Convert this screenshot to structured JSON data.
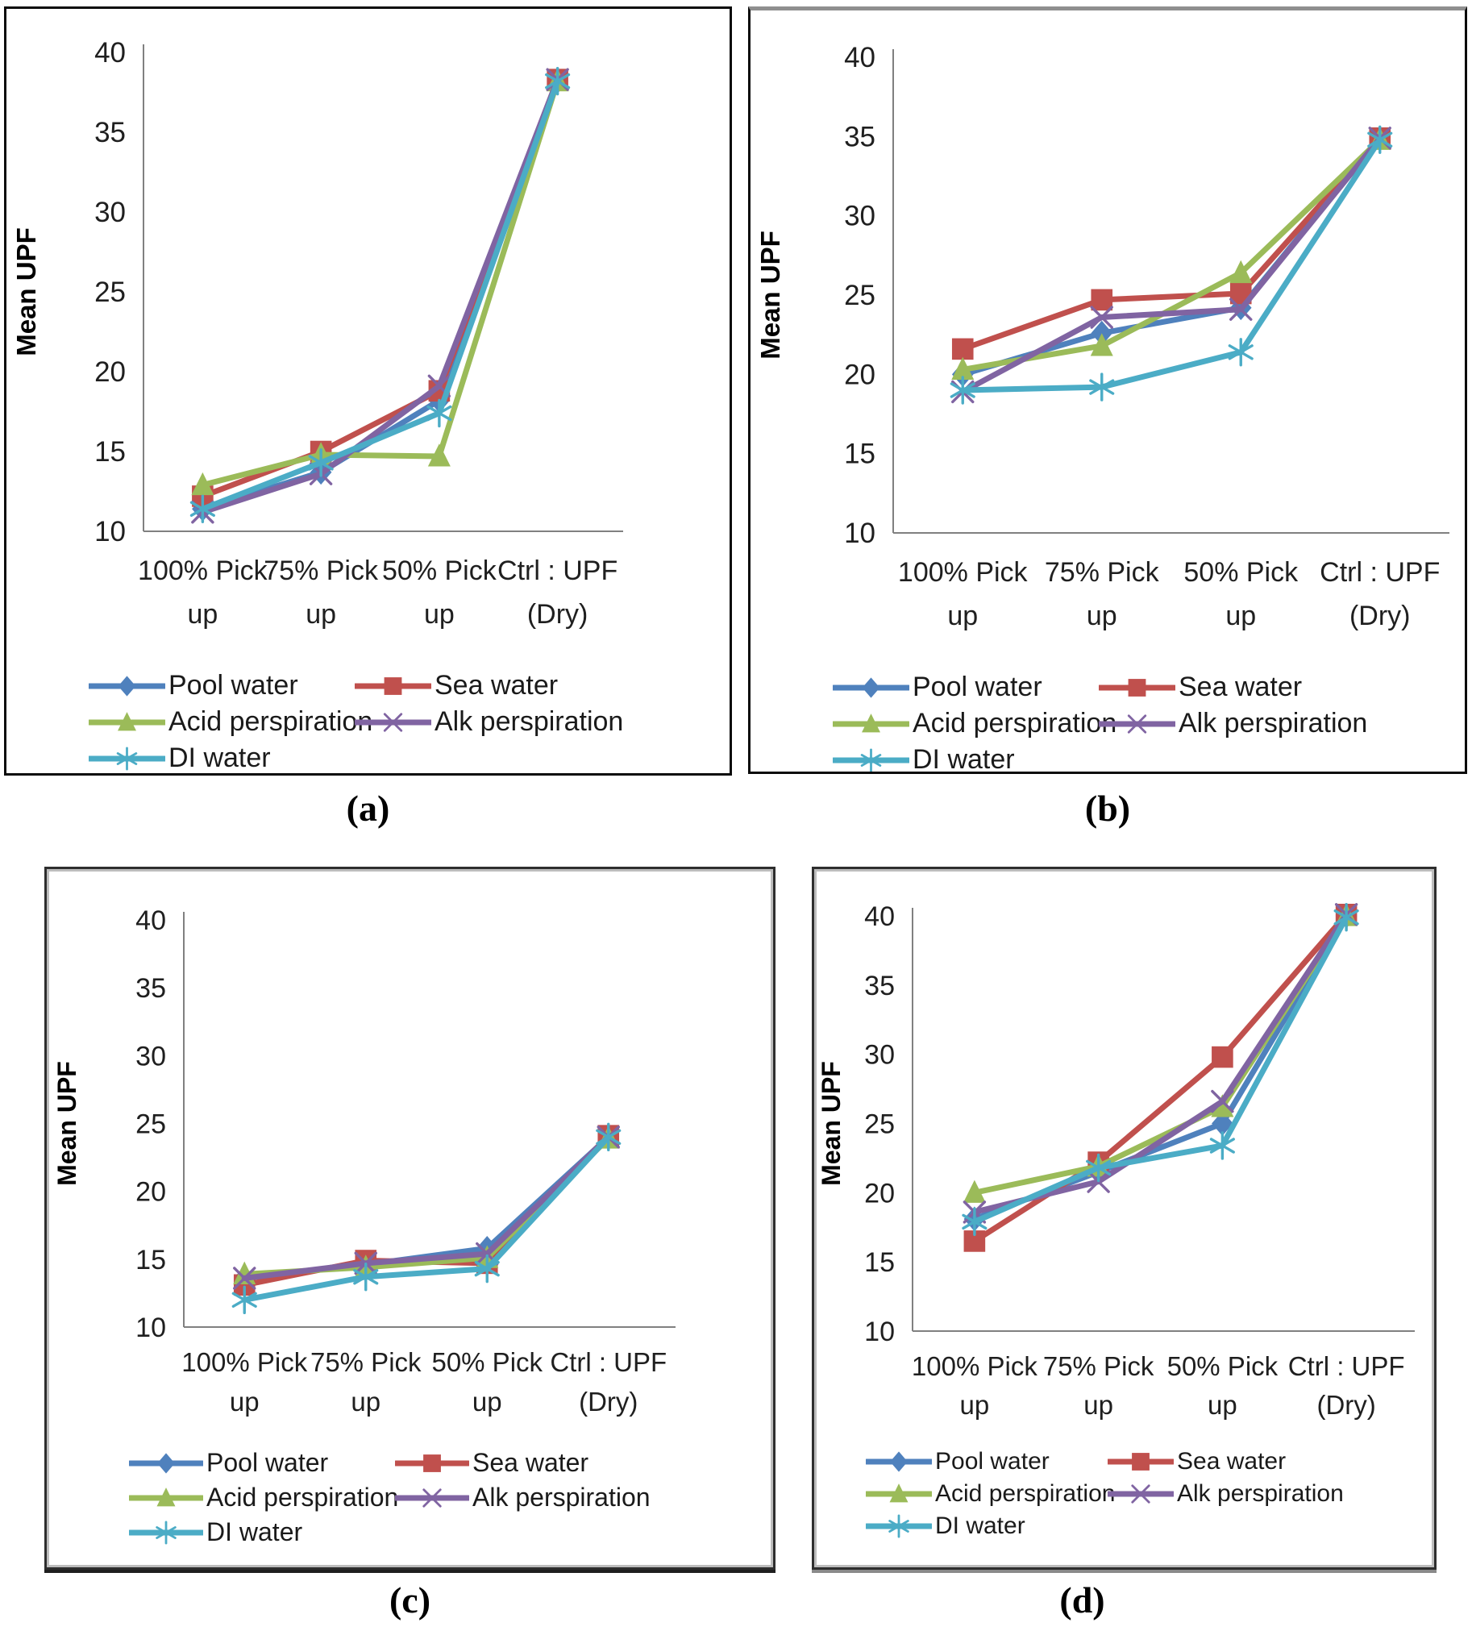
{
  "figure": {
    "captions": [
      "(a)",
      "(b)",
      "(c)",
      "(d)"
    ],
    "ylabel": "Mean UPF",
    "series_colors": {
      "pool_water": "#4F81BD",
      "sea_water": "#C0504D",
      "acid_perspiration": "#9BBB59",
      "alk_perspiration": "#8064A2",
      "di_water": "#4BACC6"
    },
    "axis_line_color": "#808080",
    "text_color": "#1f1f1f"
  },
  "chart_data": [
    {
      "id": "a",
      "type": "line",
      "title": "",
      "xlabel": "",
      "ylabel": "Mean UPF",
      "ylim": [
        10,
        40
      ],
      "yticks": [
        10,
        15,
        20,
        25,
        30,
        35,
        40
      ],
      "grid": false,
      "legend_position": "bottom",
      "categories": [
        "100% Pick up",
        "75% Pick up",
        "50% Pick up",
        "Ctrl : UPF (Dry)"
      ],
      "categories_lines": [
        [
          "100% Pick",
          "up"
        ],
        [
          "75% Pick",
          "up"
        ],
        [
          "50% Pick",
          "up"
        ],
        [
          "Ctrl : UPF",
          "(Dry)"
        ]
      ],
      "series": [
        {
          "name": "Pool water",
          "color": "#4F81BD",
          "marker": "diamond",
          "values": [
            11.4,
            13.7,
            18.2,
            38.2
          ]
        },
        {
          "name": "Sea water",
          "color": "#C0504D",
          "marker": "square",
          "values": [
            12.2,
            15.0,
            18.8,
            38.3
          ]
        },
        {
          "name": "Acid perspiration",
          "color": "#9BBB59",
          "marker": "triangle",
          "values": [
            12.9,
            14.8,
            14.7,
            38.2
          ]
        },
        {
          "name": "Alk perspiration",
          "color": "#8064A2",
          "marker": "x",
          "values": [
            11.2,
            13.6,
            19.1,
            38.3
          ]
        },
        {
          "name": "DI water",
          "color": "#4BACC6",
          "marker": "asterisk",
          "values": [
            11.4,
            14.3,
            17.4,
            38.2
          ]
        }
      ]
    },
    {
      "id": "b",
      "type": "line",
      "title": "",
      "xlabel": "",
      "ylabel": "Mean UPF",
      "ylim": [
        10,
        40
      ],
      "yticks": [
        10,
        15,
        20,
        25,
        30,
        35,
        40
      ],
      "grid": false,
      "legend_position": "bottom",
      "categories": [
        "100% Pick up",
        "75% Pick up",
        "50% Pick up",
        "Ctrl : UPF (Dry)"
      ],
      "categories_lines": [
        [
          "100% Pick",
          "up"
        ],
        [
          "75% Pick",
          "up"
        ],
        [
          "50% Pick",
          "up"
        ],
        [
          "Ctrl : UPF",
          "(Dry)"
        ]
      ],
      "series": [
        {
          "name": "Pool water",
          "color": "#4F81BD",
          "marker": "diamond",
          "values": [
            20.0,
            22.6,
            24.2,
            34.9
          ]
        },
        {
          "name": "Sea water",
          "color": "#C0504D",
          "marker": "square",
          "values": [
            21.6,
            24.7,
            25.1,
            34.9
          ]
        },
        {
          "name": "Acid perspiration",
          "color": "#9BBB59",
          "marker": "triangle",
          "values": [
            20.3,
            21.8,
            26.4,
            34.8
          ]
        },
        {
          "name": "Alk perspiration",
          "color": "#8064A2",
          "marker": "x",
          "values": [
            18.9,
            23.6,
            24.1,
            34.9
          ]
        },
        {
          "name": "DI water",
          "color": "#4BACC6",
          "marker": "asterisk",
          "values": [
            19.0,
            19.2,
            21.4,
            34.8
          ]
        }
      ]
    },
    {
      "id": "c",
      "type": "line",
      "title": "",
      "xlabel": "",
      "ylabel": "Mean UPF",
      "ylim": [
        10,
        40
      ],
      "yticks": [
        10,
        15,
        20,
        25,
        30,
        35,
        40
      ],
      "grid": false,
      "legend_position": "bottom",
      "categories": [
        "100% Pick up",
        "75% Pick up",
        "50% Pick up",
        "Ctrl : UPF (Dry)"
      ],
      "categories_lines": [
        [
          "100% Pick",
          "up"
        ],
        [
          "75% Pick",
          "up"
        ],
        [
          "50% Pick",
          "up"
        ],
        [
          "Ctrl : UPF",
          "(Dry)"
        ]
      ],
      "series": [
        {
          "name": "Pool water",
          "color": "#4F81BD",
          "marker": "diamond",
          "values": [
            13.6,
            14.6,
            15.8,
            24.0
          ]
        },
        {
          "name": "Sea water",
          "color": "#C0504D",
          "marker": "square",
          "values": [
            13.1,
            14.9,
            14.7,
            24.1
          ]
        },
        {
          "name": "Acid perspiration",
          "color": "#9BBB59",
          "marker": "triangle",
          "values": [
            13.9,
            14.4,
            15.1,
            23.9
          ]
        },
        {
          "name": "Alk perspiration",
          "color": "#8064A2",
          "marker": "x",
          "values": [
            13.6,
            14.7,
            15.4,
            24.0
          ]
        },
        {
          "name": "DI water",
          "color": "#4BACC6",
          "marker": "asterisk",
          "values": [
            12.0,
            13.7,
            14.3,
            24.0
          ]
        }
      ]
    },
    {
      "id": "d",
      "type": "line",
      "title": "",
      "xlabel": "",
      "ylabel": "Mean UPF",
      "ylim": [
        10,
        40
      ],
      "yticks": [
        10,
        15,
        20,
        25,
        30,
        35,
        40
      ],
      "grid": false,
      "legend_position": "bottom",
      "categories": [
        "100% Pick up",
        "75% Pick up",
        "50% Pick up",
        "Ctrl : UPF (Dry)"
      ],
      "categories_lines": [
        [
          "100% Pick",
          "up"
        ],
        [
          "75% Pick",
          "up"
        ],
        [
          "50% Pick",
          "up"
        ],
        [
          "Ctrl : UPF",
          "(Dry)"
        ]
      ],
      "series": [
        {
          "name": "Pool water",
          "color": "#4F81BD",
          "marker": "diamond",
          "values": [
            18.1,
            21.5,
            25.0,
            40.0
          ]
        },
        {
          "name": "Sea water",
          "color": "#C0504D",
          "marker": "square",
          "values": [
            16.5,
            22.2,
            29.8,
            40.1
          ]
        },
        {
          "name": "Acid perspiration",
          "color": "#9BBB59",
          "marker": "triangle",
          "values": [
            20.0,
            21.9,
            26.2,
            40.0
          ]
        },
        {
          "name": "Alk perspiration",
          "color": "#8064A2",
          "marker": "x",
          "values": [
            18.6,
            20.8,
            26.6,
            40.1
          ]
        },
        {
          "name": "DI water",
          "color": "#4BACC6",
          "marker": "asterisk",
          "values": [
            17.9,
            21.8,
            23.4,
            39.9
          ]
        }
      ]
    }
  ]
}
